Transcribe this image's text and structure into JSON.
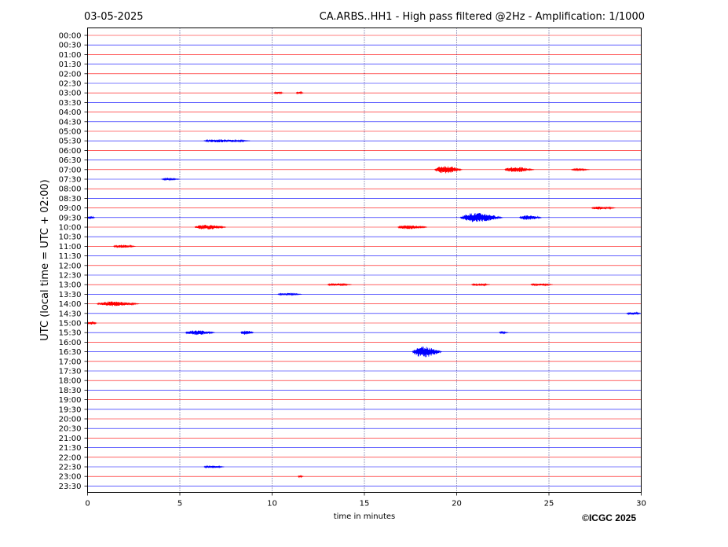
{
  "chart_data": {
    "type": "line",
    "date": "03-05-2025",
    "title": "CA.ARBS..HH1 - High pass filtered @2Hz - Amplification: 1/1000",
    "xlabel": "time in minutes",
    "ylabel": "UTC (local time = UTC + 02:00)",
    "xlim": [
      0,
      30
    ],
    "xticks": [
      0,
      5,
      10,
      15,
      20,
      25,
      30
    ],
    "grid_x": true,
    "trace_colors": [
      "#ff0000",
      "#0000ff"
    ],
    "rows": [
      "00:00",
      "00:30",
      "01:00",
      "01:30",
      "02:00",
      "02:30",
      "03:00",
      "03:30",
      "04:00",
      "04:30",
      "05:00",
      "05:30",
      "06:00",
      "06:30",
      "07:00",
      "07:30",
      "08:00",
      "08:30",
      "09:00",
      "09:30",
      "10:00",
      "10:30",
      "11:00",
      "11:30",
      "12:00",
      "12:30",
      "13:00",
      "13:30",
      "14:00",
      "14:30",
      "15:00",
      "15:30",
      "16:00",
      "16:30",
      "17:00",
      "17:30",
      "18:00",
      "18:30",
      "19:00",
      "19:30",
      "20:00",
      "20:30",
      "21:00",
      "21:30",
      "22:00",
      "22:30",
      "23:00",
      "23:30"
    ],
    "events": [
      {
        "row": "03:00",
        "start": 10.1,
        "end": 10.6,
        "amp": 1.5
      },
      {
        "row": "03:00",
        "start": 11.3,
        "end": 11.7,
        "amp": 1.5
      },
      {
        "row": "05:30",
        "start": 6.3,
        "end": 8.8,
        "amp": 2
      },
      {
        "row": "07:00",
        "start": 18.8,
        "end": 20.3,
        "amp": 5
      },
      {
        "row": "07:00",
        "start": 22.6,
        "end": 24.2,
        "amp": 3.5
      },
      {
        "row": "07:00",
        "start": 26.2,
        "end": 27.2,
        "amp": 1
      },
      {
        "row": "07:30",
        "start": 4.0,
        "end": 5.0,
        "amp": 1
      },
      {
        "row": "09:00",
        "start": 27.3,
        "end": 28.6,
        "amp": 2
      },
      {
        "row": "09:30",
        "start": 0.0,
        "end": 0.4,
        "amp": 1.5
      },
      {
        "row": "09:30",
        "start": 20.2,
        "end": 22.5,
        "amp": 6
      },
      {
        "row": "09:30",
        "start": 23.4,
        "end": 24.6,
        "amp": 3
      },
      {
        "row": "10:00",
        "start": 5.8,
        "end": 7.5,
        "amp": 3
      },
      {
        "row": "10:00",
        "start": 16.8,
        "end": 18.4,
        "amp": 2.5
      },
      {
        "row": "11:00",
        "start": 1.4,
        "end": 2.6,
        "amp": 2
      },
      {
        "row": "13:00",
        "start": 13.0,
        "end": 14.3,
        "amp": 1.5
      },
      {
        "row": "13:00",
        "start": 20.8,
        "end": 21.8,
        "amp": 1.5
      },
      {
        "row": "13:00",
        "start": 24.0,
        "end": 25.2,
        "amp": 1.5
      },
      {
        "row": "13:30",
        "start": 10.3,
        "end": 11.6,
        "amp": 1.5
      },
      {
        "row": "14:00",
        "start": 0.5,
        "end": 2.8,
        "amp": 3
      },
      {
        "row": "14:30",
        "start": 29.2,
        "end": 30.0,
        "amp": 1.5
      },
      {
        "row": "15:00",
        "start": 0.0,
        "end": 0.5,
        "amp": 2
      },
      {
        "row": "15:30",
        "start": 5.3,
        "end": 6.9,
        "amp": 3
      },
      {
        "row": "15:30",
        "start": 8.3,
        "end": 9.0,
        "amp": 3
      },
      {
        "row": "15:30",
        "start": 22.3,
        "end": 22.8,
        "amp": 1
      },
      {
        "row": "16:30",
        "start": 17.6,
        "end": 19.2,
        "amp": 7
      },
      {
        "row": "22:30",
        "start": 6.3,
        "end": 7.4,
        "amp": 1.5
      },
      {
        "row": "23:00",
        "start": 11.4,
        "end": 11.7,
        "amp": 1
      }
    ]
  },
  "copyright": "©ICGC 2025"
}
